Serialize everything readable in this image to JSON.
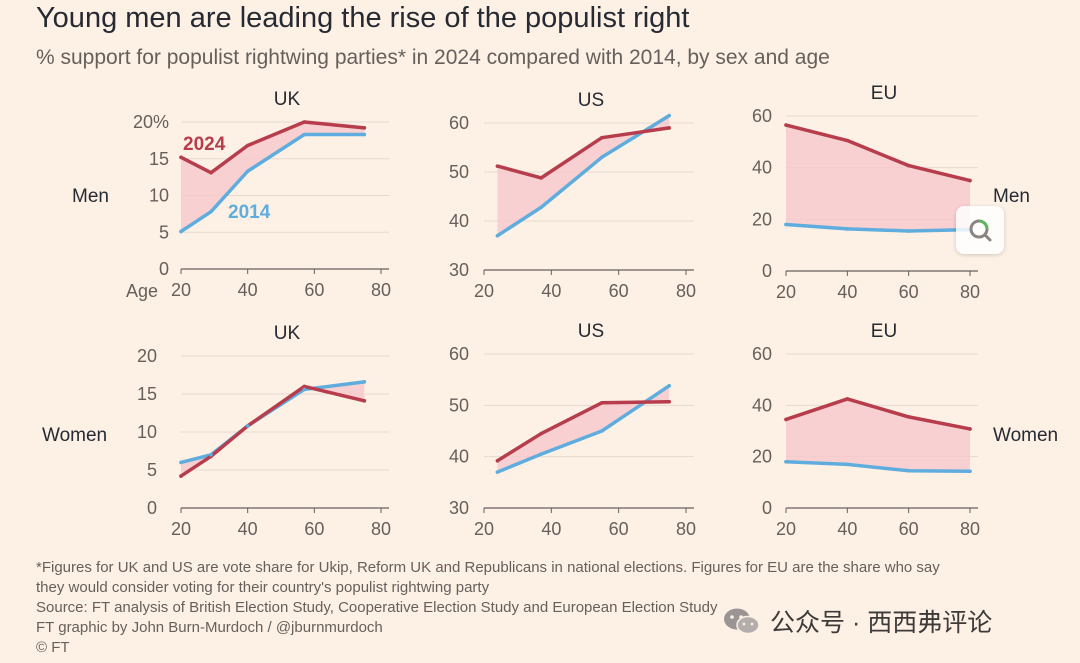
{
  "header": {
    "title": "Young men are leading the rise of the populist right",
    "subtitle": "% support for populist rightwing parties* in 2024 compared with 2014, by sex and age"
  },
  "row_labels": {
    "men": "Men",
    "women": "Women"
  },
  "x_axis_prefix": "Age",
  "colors": {
    "y2024": "#b73d4c",
    "y2014": "#5fadde",
    "fill": "#f7c8cc"
  },
  "chart_data": [
    {
      "id": "men-uk",
      "type": "line",
      "title": "UK",
      "ylim": [
        0,
        20
      ],
      "yticks": [
        0,
        5,
        10,
        15,
        20
      ],
      "ytick_labels": [
        "0",
        "5",
        "10",
        "15",
        "20%"
      ],
      "xlim": [
        20,
        80
      ],
      "xticks": [
        20,
        40,
        60,
        80
      ],
      "xtick_labels": [
        "20",
        "40",
        "60",
        "80"
      ],
      "series": [
        {
          "name": "2024",
          "x": [
            20,
            29,
            40,
            57,
            75
          ],
          "values": [
            15.2,
            13.1,
            16.8,
            20.0,
            19.2
          ]
        },
        {
          "name": "2014",
          "x": [
            20,
            29,
            40,
            57,
            75
          ],
          "values": [
            5.1,
            7.8,
            13.3,
            18.3,
            18.3
          ]
        }
      ],
      "annotations": [
        {
          "text": "2024",
          "series": "2024"
        },
        {
          "text": "2014",
          "series": "2014"
        }
      ]
    },
    {
      "id": "men-us",
      "type": "line",
      "title": "US",
      "ylim": [
        30,
        60
      ],
      "yticks": [
        30,
        40,
        50,
        60
      ],
      "ytick_labels": [
        "30",
        "40",
        "50",
        "60"
      ],
      "xlim": [
        20,
        80
      ],
      "xticks": [
        20,
        40,
        60,
        80
      ],
      "xtick_labels": [
        "20",
        "40",
        "60",
        "80"
      ],
      "series": [
        {
          "name": "2024",
          "x": [
            24,
            37,
            55,
            75
          ],
          "values": [
            51.2,
            48.8,
            57.0,
            59.0
          ]
        },
        {
          "name": "2014",
          "x": [
            24,
            37,
            55,
            75
          ],
          "values": [
            37.0,
            42.8,
            53.0,
            61.5
          ]
        }
      ]
    },
    {
      "id": "men-eu",
      "type": "line",
      "title": "EU",
      "ylim": [
        0,
        60
      ],
      "yticks": [
        0,
        20,
        40,
        60
      ],
      "ytick_labels": [
        "0",
        "20",
        "40",
        "60"
      ],
      "xlim": [
        20,
        80
      ],
      "xticks": [
        20,
        40,
        60,
        80
      ],
      "xtick_labels": [
        "20",
        "40",
        "60",
        "80"
      ],
      "series": [
        {
          "name": "2024",
          "x": [
            20,
            40,
            60,
            80
          ],
          "values": [
            56.5,
            50.5,
            40.8,
            35.0
          ]
        },
        {
          "name": "2014",
          "x": [
            20,
            40,
            60,
            80
          ],
          "values": [
            18.0,
            16.3,
            15.5,
            16.0
          ]
        }
      ]
    },
    {
      "id": "women-uk",
      "type": "line",
      "title": "UK",
      "ylim": [
        0,
        20
      ],
      "yticks": [
        0,
        5,
        10,
        15,
        20
      ],
      "ytick_labels": [
        "0",
        "5",
        "10",
        "15",
        "20"
      ],
      "xlim": [
        20,
        80
      ],
      "xticks": [
        20,
        40,
        60,
        80
      ],
      "xtick_labels": [
        "20",
        "40",
        "60",
        "80"
      ],
      "series": [
        {
          "name": "2024",
          "x": [
            20,
            29,
            40,
            57,
            75
          ],
          "values": [
            4.2,
            6.8,
            10.8,
            16.0,
            14.1
          ]
        },
        {
          "name": "2014",
          "x": [
            20,
            29,
            40,
            57,
            75
          ],
          "values": [
            6.0,
            7.0,
            10.8,
            15.6,
            16.6
          ]
        }
      ]
    },
    {
      "id": "women-us",
      "type": "line",
      "title": "US",
      "ylim": [
        30,
        60
      ],
      "yticks": [
        30,
        40,
        50,
        60
      ],
      "ytick_labels": [
        "30",
        "40",
        "50",
        "60"
      ],
      "xlim": [
        20,
        80
      ],
      "xticks": [
        20,
        40,
        60,
        80
      ],
      "xtick_labels": [
        "20",
        "40",
        "60",
        "80"
      ],
      "series": [
        {
          "name": "2024",
          "x": [
            24,
            37,
            55,
            75
          ],
          "values": [
            39.2,
            44.5,
            50.5,
            50.7
          ]
        },
        {
          "name": "2014",
          "x": [
            24,
            37,
            55,
            75
          ],
          "values": [
            37.0,
            40.5,
            45.0,
            53.8
          ]
        }
      ]
    },
    {
      "id": "women-eu",
      "type": "line",
      "title": "EU",
      "ylim": [
        0,
        60
      ],
      "yticks": [
        0,
        20,
        40,
        60
      ],
      "ytick_labels": [
        "0",
        "20",
        "40",
        "60"
      ],
      "xlim": [
        20,
        80
      ],
      "xticks": [
        20,
        40,
        60,
        80
      ],
      "xtick_labels": [
        "20",
        "40",
        "60",
        "80"
      ],
      "series": [
        {
          "name": "2024",
          "x": [
            20,
            40,
            60,
            80
          ],
          "values": [
            34.5,
            42.5,
            35.5,
            30.8
          ]
        },
        {
          "name": "2014",
          "x": [
            20,
            40,
            60,
            80
          ],
          "values": [
            18.0,
            17.0,
            14.5,
            14.3
          ]
        }
      ]
    }
  ],
  "footnotes": {
    "note_line1": "*Figures for UK and US are vote share for Ukip, Reform UK and Republicans in national elections. Figures for EU are the share who say",
    "note_line2": "they would consider voting for their country's populist rightwing party",
    "source": "Source: FT analysis of British Election Study, Cooperative Election Study and European Election Study",
    "credit": "FT graphic by John Burn-Murdoch / @jburnmurdoch",
    "copyright": "© FT"
  },
  "watermark": {
    "text": "公众号 · 西西弗评论",
    "icon": "wechat-icon"
  },
  "overlay": {
    "icon": "zoom-lens-icon"
  }
}
